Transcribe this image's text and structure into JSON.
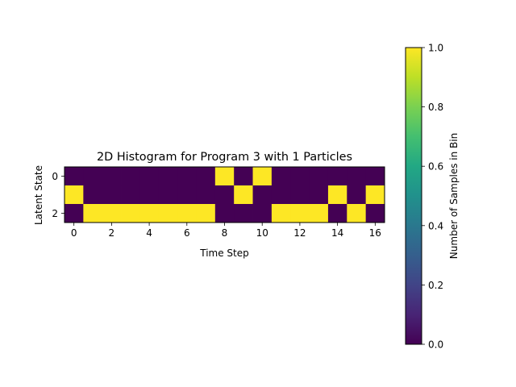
{
  "chart_data": {
    "type": "heatmap",
    "title": "2D Histogram for Program 3 with 1 Particles",
    "xlabel": "Time Step",
    "ylabel": "Latent State",
    "x": [
      0,
      1,
      2,
      3,
      4,
      5,
      6,
      7,
      8,
      9,
      10,
      11,
      12,
      13,
      14,
      15,
      16
    ],
    "y": [
      0,
      1,
      2
    ],
    "x_ticks": [
      0,
      2,
      4,
      6,
      8,
      10,
      12,
      14,
      16
    ],
    "y_ticks": [
      0,
      2
    ],
    "xlim": [
      -0.5,
      16.5
    ],
    "ylim": [
      2.5,
      -0.5
    ],
    "z": [
      [
        0,
        0,
        0,
        0,
        0,
        0,
        0,
        0,
        1,
        0,
        1,
        0,
        0,
        0,
        0,
        0,
        0
      ],
      [
        1,
        0,
        0,
        0,
        0,
        0,
        0,
        0,
        0,
        1,
        0,
        0,
        0,
        0,
        1,
        0,
        1
      ],
      [
        0,
        1,
        1,
        1,
        1,
        1,
        1,
        1,
        0,
        0,
        0,
        1,
        1,
        1,
        0,
        1,
        0
      ]
    ],
    "colormap": "viridis",
    "colormap_colors": {
      "low": "#440154",
      "high": "#fde725"
    },
    "colorbar": {
      "label": "Number of Samples in Bin",
      "range": [
        0.0,
        1.0
      ],
      "ticks": [
        "0.0",
        "0.2",
        "0.4",
        "0.6",
        "0.8",
        "1.0"
      ]
    },
    "grid": false
  }
}
